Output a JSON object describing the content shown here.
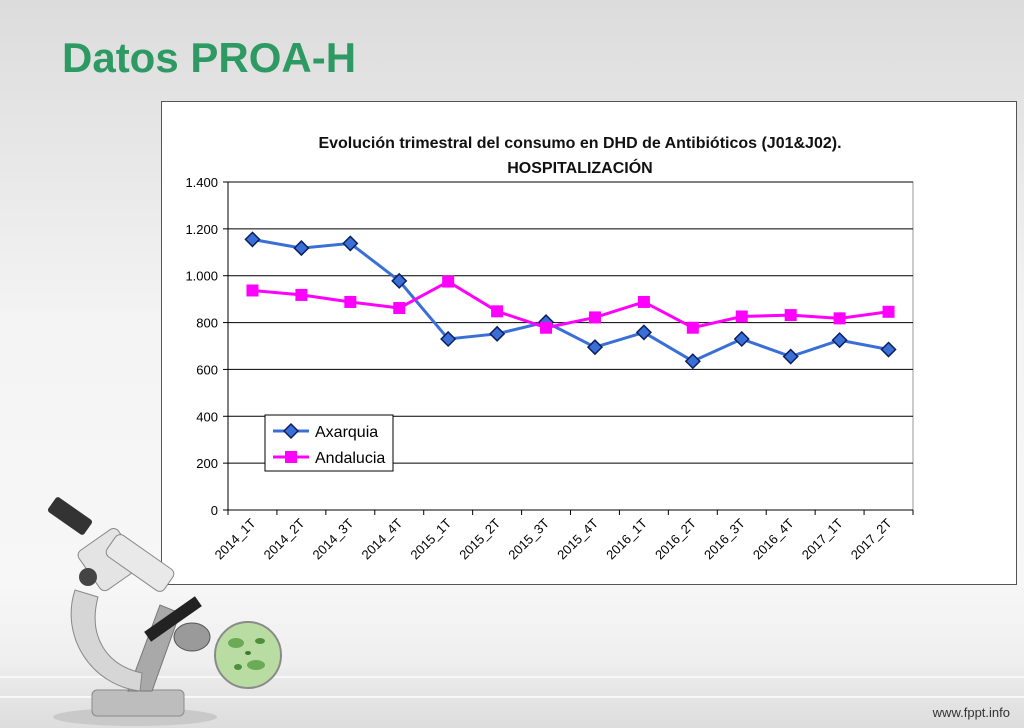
{
  "slide": {
    "title": "Datos PROA-H",
    "footer": "www.fppt.info"
  },
  "colors": {
    "title": "#2e9a63",
    "axarquia": "#3a6fd8",
    "andalucia": "#ff00ff"
  },
  "chart_data": {
    "type": "line",
    "title": "Evolución trimestral del consumo en DHD de Antibióticos (J01&J02).",
    "subtitle": "HOSPITALIZACIÓN",
    "xlabel": "",
    "ylabel": "",
    "categories": [
      "2014_1T",
      "2014_2T",
      "2014_3T",
      "2014_4T",
      "2015_1T",
      "2015_2T",
      "2015_3T",
      "2015_4T",
      "2016_1T",
      "2016_2T",
      "2016_3T",
      "2016_4T",
      "2017_1T",
      "2017_2T"
    ],
    "ylim": [
      0,
      1400
    ],
    "yticks": [
      0,
      200,
      400,
      600,
      800,
      1000,
      1200,
      1400
    ],
    "ytick_labels": [
      "0",
      "200",
      "400",
      "600",
      "800",
      "1.000",
      "1.200",
      "1.400"
    ],
    "grid": true,
    "legend_position": "bottom-left",
    "series": [
      {
        "name": "Axarquia",
        "marker": "diamond",
        "values": [
          1155,
          1118,
          1138,
          978,
          730,
          752,
          802,
          695,
          758,
          635,
          730,
          655,
          725,
          685
        ]
      },
      {
        "name": "Andalucia",
        "marker": "square",
        "values": [
          937,
          918,
          888,
          862,
          975,
          848,
          778,
          822,
          888,
          778,
          826,
          832,
          818,
          846
        ]
      }
    ]
  }
}
